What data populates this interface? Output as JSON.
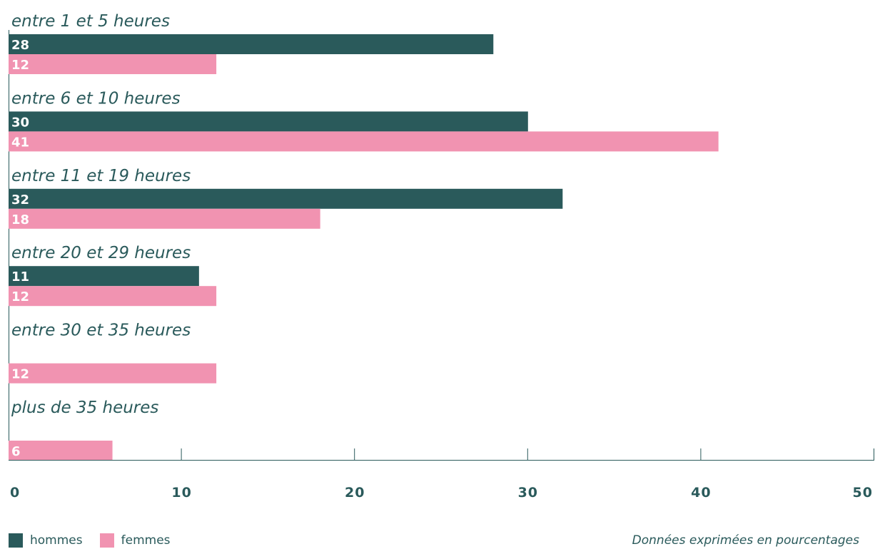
{
  "chart_data": {
    "type": "bar",
    "orientation": "horizontal",
    "categories": [
      "entre 1 et 5 heures",
      "entre 6 et 10 heures",
      "entre 11 et 19 heures",
      "entre 20 et 29 heures",
      "entre 30 et 35 heures",
      "plus de 35 heures"
    ],
    "series": [
      {
        "name": "hommes",
        "color": "#2a5a5b",
        "values": [
          28,
          30,
          32,
          11,
          null,
          null
        ]
      },
      {
        "name": "femmes",
        "color": "#f193b1",
        "values": [
          12,
          41,
          18,
          12,
          12,
          6
        ]
      }
    ],
    "xlim": [
      0,
      50
    ],
    "xticks": [
      0,
      10,
      20,
      30,
      40,
      50
    ],
    "legend_position": "bottom-left"
  },
  "legend": {
    "hommes": "hommes",
    "femmes": "femmes"
  },
  "note": "Données exprimées en pourcentages"
}
